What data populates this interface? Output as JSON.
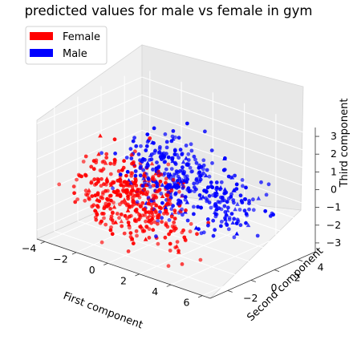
{
  "chart_data": {
    "type": "scatter",
    "projection": "3d",
    "title": "predicted values for male vs female in gym",
    "xlabel": "First component",
    "ylabel": "Second component",
    "zlabel": "Third component",
    "xlim": [
      -4.5,
      6.5
    ],
    "ylim": [
      -3.5,
      5.5
    ],
    "zlim": [
      -3.5,
      3.5
    ],
    "xticks": [
      "−4",
      "−2",
      "0",
      "2",
      "4",
      "6"
    ],
    "yticks": [
      "−2",
      "0",
      "2",
      "4"
    ],
    "zticks": [
      "3",
      "2",
      "1",
      "0",
      "−1",
      "−2",
      "−3"
    ],
    "grid": true,
    "legend": {
      "position": "top-left",
      "entries": [
        "Female",
        "Male"
      ]
    },
    "series": [
      {
        "name": "Female",
        "color": "#ff0000",
        "clusters": [
          {
            "center": [
              -1.2,
              -0.8,
              -0.6
            ],
            "spread": [
              1.3,
              1.1,
              1.0
            ],
            "count": 300
          },
          {
            "center": [
              1.6,
              -1.0,
              -1.2
            ],
            "spread": [
              0.9,
              0.8,
              0.9
            ],
            "count": 110
          }
        ]
      },
      {
        "name": "Male",
        "color": "#0000ff",
        "clusters": [
          {
            "center": [
              0.8,
              0.6,
              0.6
            ],
            "spread": [
              1.2,
              1.1,
              1.0
            ],
            "count": 260
          },
          {
            "center": [
              3.6,
              1.6,
              -0.6
            ],
            "spread": [
              0.9,
              0.9,
              0.9
            ],
            "count": 130
          }
        ]
      }
    ]
  }
}
